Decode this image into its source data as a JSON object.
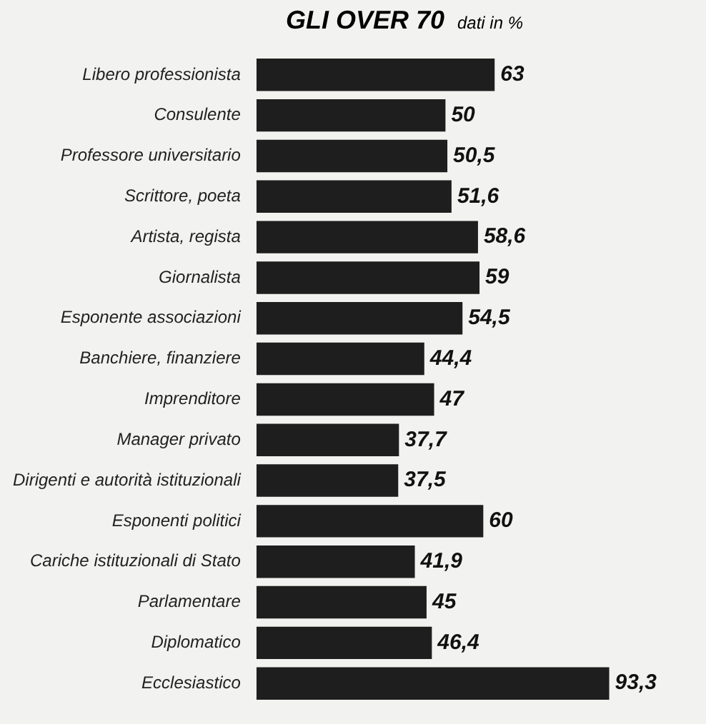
{
  "chart_data": {
    "type": "bar",
    "orientation": "horizontal",
    "title": "GLI OVER 70",
    "subtitle": "dati in %",
    "categories": [
      "Libero professionista",
      "Consulente",
      "Professore universitario",
      "Scrittore, poeta",
      "Artista, regista",
      "Giornalista",
      "Esponente associazioni",
      "Banchiere, finanziere",
      "Imprenditore",
      "Manager privato",
      "Dirigenti e autorità istituzionali",
      "Esponenti politici",
      "Cariche istituzionali di Stato",
      "Parlamentare",
      "Diplomatico",
      "Ecclesiastico"
    ],
    "values": [
      63,
      50,
      50.5,
      51.6,
      58.6,
      59,
      54.5,
      44.4,
      47,
      37.7,
      37.5,
      60,
      41.9,
      45,
      46.4,
      93.3
    ],
    "value_labels": [
      "63",
      "50",
      "50,5",
      "51,6",
      "58,6",
      "59",
      "54,5",
      "44,4",
      "47",
      "37,7",
      "37,5",
      "60",
      "41,9",
      "45",
      "46,4",
      "93,3"
    ],
    "color": "#1e1e1e",
    "tick_labels": "y"
  }
}
